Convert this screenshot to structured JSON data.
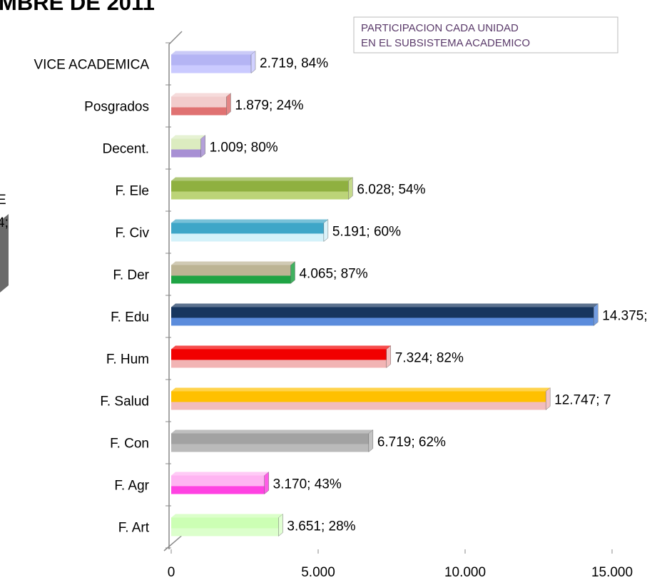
{
  "chart_data": {
    "type": "bar",
    "orientation": "horizontal",
    "title": "MBRE DE 2011",
    "fragments": [
      "E",
      "4;"
    ],
    "legend": [
      "PARTICIPACION CADA UNIDAD",
      "EN EL SUBSISTEMA ACADEMICO"
    ],
    "categories": [
      "VICE ACADEMICA",
      "Posgrados",
      "Decent.",
      "F. Ele",
      "F. Civ",
      "F. Der",
      "F. Edu",
      "F. Hum",
      "F. Salud",
      "F. Con",
      "F. Agr",
      "F. Art"
    ],
    "values": [
      2719,
      1879,
      1009,
      6028,
      5191,
      4065,
      14375,
      7324,
      12747,
      6719,
      3170,
      3651
    ],
    "value_labels": [
      "2.719,  84%",
      "1.879;   24%",
      "1.009;   80%",
      "6.028;   54%",
      "5.191;   60%",
      "4.065;   87%",
      "14.375;",
      "7.324;   82%",
      "12.747;   7",
      "6.719;   62%",
      "3.170;   43%",
      "3.651;   28%"
    ],
    "colors": [
      [
        "#b4b4f4",
        "#cacaff"
      ],
      [
        "#f2cccc",
        "#e07272"
      ],
      [
        "#dcecc0",
        "#a890d4"
      ],
      [
        "#8fb040",
        "#bcd478"
      ],
      [
        "#3ea6c8",
        "#d4f2fa"
      ],
      [
        "#bcb494",
        "#1fa444"
      ],
      [
        "#17365f",
        "#5b8cdc"
      ],
      [
        "#f20000",
        "#f2b4b4"
      ],
      [
        "#ffc000",
        "#f2bcbc"
      ],
      [
        "#a2a2a2",
        "#bababa"
      ],
      [
        "#ffb4f2",
        "#ff42e2"
      ],
      [
        "#ccffb4",
        "#dcffcc"
      ]
    ],
    "xlim": [
      0,
      15000
    ],
    "xticks": [
      0,
      {
        "value": 5000,
        "label": "5.000"
      },
      {
        "value": 10000,
        "label": "10.000"
      },
      {
        "value": 15000,
        "label": "15.000"
      }
    ]
  }
}
